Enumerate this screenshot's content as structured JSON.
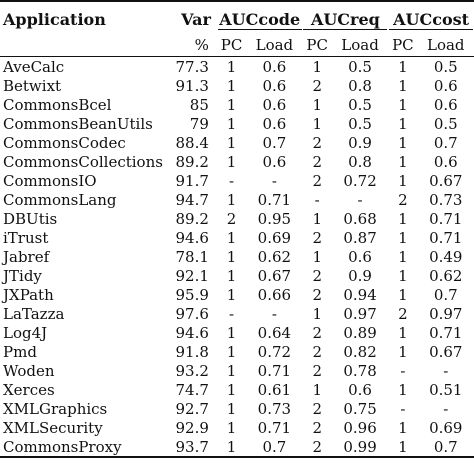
{
  "table": {
    "headers": {
      "application": "Application",
      "var": "Var",
      "var_unit": "%",
      "groups": [
        "AUCcode",
        "AUCreq",
        "AUCcost"
      ],
      "subcols": [
        "PC",
        "Load"
      ]
    },
    "rows": [
      {
        "app": "AveCalc",
        "var": "77.3",
        "v": [
          "1",
          "0.6",
          "1",
          "0.5",
          "1",
          "0.5"
        ]
      },
      {
        "app": "Betwixt",
        "var": "91.3",
        "v": [
          "1",
          "0.6",
          "2",
          "0.8",
          "1",
          "0.6"
        ]
      },
      {
        "app": "CommonsBcel",
        "var": "85",
        "v": [
          "1",
          "0.6",
          "1",
          "0.5",
          "1",
          "0.6"
        ]
      },
      {
        "app": "CommonsBeanUtils",
        "var": "79",
        "v": [
          "1",
          "0.6",
          "1",
          "0.5",
          "1",
          "0.5"
        ]
      },
      {
        "app": "CommonsCodec",
        "var": "88.4",
        "v": [
          "1",
          "0.7",
          "2",
          "0.9",
          "1",
          "0.7"
        ]
      },
      {
        "app": "CommonsCollections",
        "var": "89.2",
        "v": [
          "1",
          "0.6",
          "2",
          "0.8",
          "1",
          "0.6"
        ]
      },
      {
        "app": "CommonsIO",
        "var": "91.7",
        "v": [
          "-",
          "-",
          "2",
          "0.72",
          "1",
          "0.67"
        ]
      },
      {
        "app": "CommonsLang",
        "var": "94.7",
        "v": [
          "1",
          "0.71",
          "-",
          "-",
          "2",
          "0.73"
        ]
      },
      {
        "app": "DBUtis",
        "var": "89.2",
        "v": [
          "2",
          "0.95",
          "1",
          "0.68",
          "1",
          "0.71"
        ]
      },
      {
        "app": "iTrust",
        "var": "94.6",
        "v": [
          "1",
          "0.69",
          "2",
          "0.87",
          "1",
          "0.71"
        ]
      },
      {
        "app": "Jabref",
        "var": "78.1",
        "v": [
          "1",
          "0.62",
          "1",
          "0.6",
          "1",
          "0.49"
        ]
      },
      {
        "app": "JTidy",
        "var": "92.1",
        "v": [
          "1",
          "0.67",
          "2",
          "0.9",
          "1",
          "0.62"
        ]
      },
      {
        "app": "JXPath",
        "var": "95.9",
        "v": [
          "1",
          "0.66",
          "2",
          "0.94",
          "1",
          "0.7"
        ]
      },
      {
        "app": "LaTazza",
        "var": "97.6",
        "v": [
          "-",
          "-",
          "1",
          "0.97",
          "2",
          "0.97"
        ]
      },
      {
        "app": "Log4J",
        "var": "94.6",
        "v": [
          "1",
          "0.64",
          "2",
          "0.89",
          "1",
          "0.71"
        ]
      },
      {
        "app": "Pmd",
        "var": "91.8",
        "v": [
          "1",
          "0.72",
          "2",
          "0.82",
          "1",
          "0.67"
        ]
      },
      {
        "app": "Woden",
        "var": "93.2",
        "v": [
          "1",
          "0.71",
          "2",
          "0.78",
          "-",
          "-"
        ]
      },
      {
        "app": "Xerces",
        "var": "74.7",
        "v": [
          "1",
          "0.61",
          "1",
          "0.6",
          "1",
          "0.51"
        ]
      },
      {
        "app": "XMLGraphics",
        "var": "92.7",
        "v": [
          "1",
          "0.73",
          "2",
          "0.75",
          "-",
          "-"
        ]
      },
      {
        "app": "XMLSecurity",
        "var": "92.9",
        "v": [
          "1",
          "0.71",
          "2",
          "0.96",
          "1",
          "0.69"
        ]
      },
      {
        "app": "CommonsProxy",
        "var": "93.7",
        "v": [
          "1",
          "0.7",
          "2",
          "0.99",
          "1",
          "0.7"
        ]
      }
    ]
  }
}
